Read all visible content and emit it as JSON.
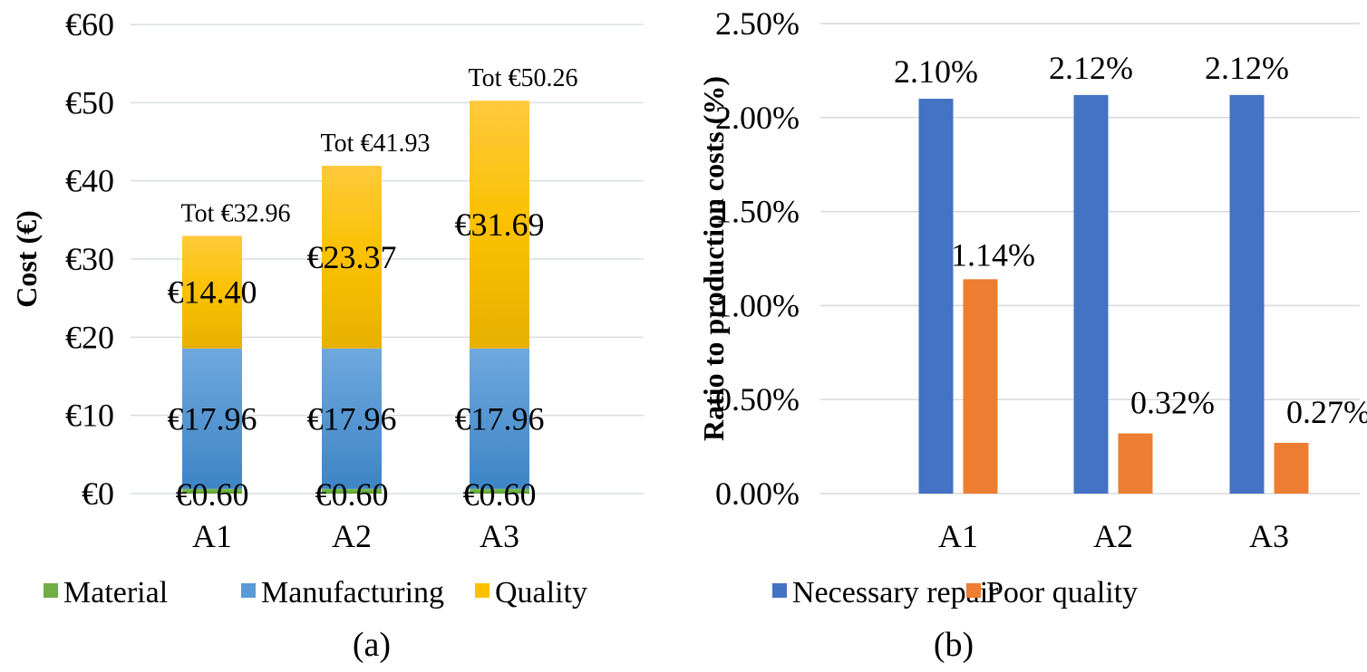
{
  "chart_data": [
    {
      "type": "bar",
      "stacked": true,
      "caption": "(a)",
      "ylabel": "Cost (€)",
      "xlabel": "",
      "ylim": [
        0,
        60
      ],
      "yticks": [
        0,
        10,
        20,
        30,
        40,
        50,
        60
      ],
      "ytick_labels": [
        "€0",
        "€10",
        "€20",
        "€30",
        "€40",
        "€50",
        "€60"
      ],
      "grid": true,
      "legend_position": "bottom",
      "categories": [
        "A1",
        "A2",
        "A3"
      ],
      "series": [
        {
          "name": "Material",
          "color": "#70ad47",
          "values": [
            0.6,
            0.6,
            0.6
          ],
          "labels": [
            "€0.60",
            "€0.60",
            "€0.60"
          ]
        },
        {
          "name": "Manufacturing",
          "color": "#5b9bd5",
          "values": [
            17.96,
            17.96,
            17.96
          ],
          "labels": [
            "€17.96",
            "€17.96",
            "€17.96"
          ]
        },
        {
          "name": "Quality",
          "color": "#ffc000",
          "values": [
            14.4,
            23.37,
            31.69
          ],
          "labels": [
            "€14.40",
            "€23.37",
            "€31.69"
          ]
        }
      ],
      "totals": [
        32.96,
        41.93,
        50.26
      ],
      "total_labels": [
        "Tot €32.96",
        "Tot €41.93",
        "Tot €50.26"
      ]
    },
    {
      "type": "bar",
      "stacked": false,
      "caption": "(b)",
      "ylabel": "Ratio to production costs (%)",
      "xlabel": "",
      "ylim": [
        0,
        2.5
      ],
      "yticks": [
        0,
        0.5,
        1.0,
        1.5,
        2.0,
        2.5
      ],
      "ytick_labels": [
        "0.00%",
        "0.50%",
        "1.00%",
        "1.50%",
        "2.00%",
        "2.50%"
      ],
      "grid": true,
      "legend_position": "bottom",
      "categories": [
        "A1",
        "A2",
        "A3"
      ],
      "series": [
        {
          "name": "Necessary repair",
          "color": "#4472c4",
          "values": [
            2.1,
            2.12,
            2.12
          ],
          "labels": [
            "2.10%",
            "2.12%",
            "2.12%"
          ]
        },
        {
          "name": "Poor quality",
          "color": "#ed7d31",
          "values": [
            1.14,
            0.32,
            0.27
          ],
          "labels": [
            "1.14%",
            "0.32%",
            "0.27%"
          ]
        }
      ]
    }
  ]
}
